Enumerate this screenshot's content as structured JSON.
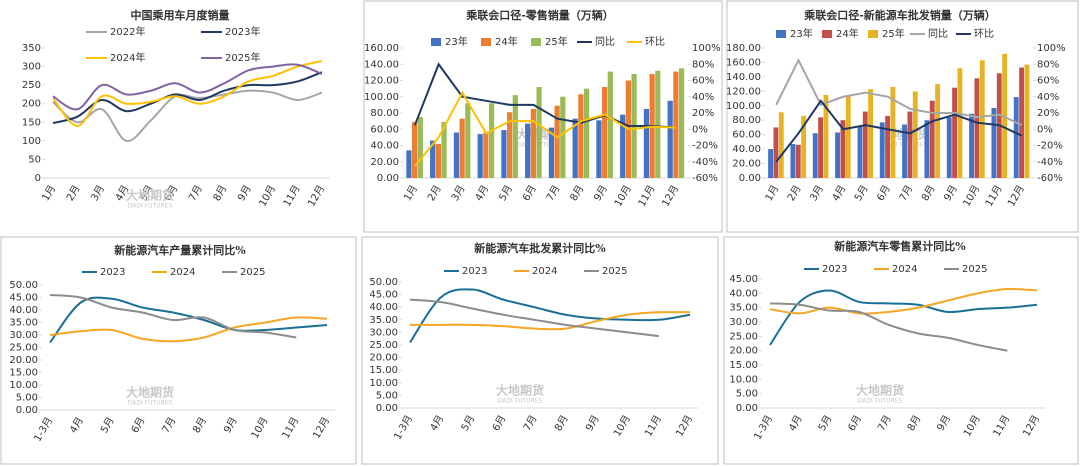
{
  "chart_data": [
    {
      "type": "line",
      "title": "中国乘用车月度销量",
      "categories": [
        "1月",
        "2月",
        "3月",
        "4月",
        "5月",
        "6月",
        "7月",
        "8月",
        "9月",
        "10月",
        "11月",
        "12月"
      ],
      "series": [
        {
          "name": "2022年",
          "color": "#a6a6a6",
          "values": [
            205,
            150,
            185,
            100,
            155,
            220,
            215,
            225,
            235,
            230,
            210,
            230
          ]
        },
        {
          "name": "2023年",
          "color": "#1f3864",
          "values": [
            148,
            165,
            210,
            180,
            200,
            225,
            210,
            235,
            250,
            250,
            260,
            285
          ]
        },
        {
          "name": "2024年",
          "color": "#ffc000",
          "values": [
            215,
            140,
            220,
            200,
            205,
            220,
            200,
            220,
            260,
            275,
            300,
            315
          ]
        },
        {
          "name": "2025年",
          "color": "#8064a2",
          "values": [
            220,
            185,
            250,
            225,
            235,
            255,
            230,
            255,
            290,
            300,
            305,
            280
          ]
        }
      ],
      "ylim": [
        0,
        350
      ],
      "yticks": [
        0,
        50,
        100,
        150,
        200,
        250,
        300,
        350
      ],
      "watermark": "大地期货",
      "watermark_sub": "DADI FUTURES"
    },
    {
      "type": "bar",
      "title": "乘联会口径-零售销量（万辆）",
      "categories": [
        "1月",
        "2月",
        "3月",
        "4月",
        "5月",
        "6月",
        "7月",
        "8月",
        "9月",
        "10月",
        "11月",
        "12月"
      ],
      "series": [
        {
          "name": "23年",
          "color": "#4472c4",
          "values": [
            34,
            46,
            56,
            54,
            59,
            67,
            62,
            73,
            71,
            78,
            85,
            95
          ]
        },
        {
          "name": "24年",
          "color": "#ed7d31",
          "values": [
            69,
            42,
            73,
            56,
            81,
            85,
            89,
            103,
            112,
            120,
            128,
            131
          ]
        },
        {
          "name": "25年",
          "color": "#9bbb59",
          "values": [
            75,
            69,
            92,
            92,
            102,
            112,
            100,
            110,
            131,
            128,
            132,
            135
          ]
        },
        {
          "name": "同比",
          "color": "#1f3864",
          "axis": "y2",
          "values": [
            5,
            80,
            40,
            35,
            30,
            30,
            13,
            8,
            17,
            4,
            4,
            2
          ]
        },
        {
          "name": "环比",
          "color": "#ffc000",
          "axis": "y2",
          "values": [
            -45,
            -10,
            45,
            -5,
            10,
            10,
            -10,
            10,
            18,
            0,
            3,
            2
          ]
        }
      ],
      "ylim": [
        0,
        160
      ],
      "yticks": [
        {
          "value": 0,
          "label": "0.00"
        },
        {
          "value": 20,
          "label": "20.00"
        },
        {
          "value": 40,
          "label": "40.00"
        },
        {
          "value": 60,
          "label": "60.00"
        },
        {
          "value": 80,
          "label": "80.00"
        },
        {
          "value": 100,
          "label": "100.00"
        },
        {
          "value": 120,
          "label": "120.00"
        },
        {
          "value": 140,
          "label": "140.00"
        },
        {
          "value": 160,
          "label": "160.00"
        }
      ],
      "y2lim": [
        -60,
        100
      ],
      "y2ticks": [
        {
          "value": -60,
          "label": "-60%"
        },
        {
          "value": -40,
          "label": "-40%"
        },
        {
          "value": -20,
          "label": "-20%"
        },
        {
          "value": 0,
          "label": "0%"
        },
        {
          "value": 20,
          "label": "20%"
        },
        {
          "value": 40,
          "label": "40%"
        },
        {
          "value": 60,
          "label": "60%"
        },
        {
          "value": 80,
          "label": "80%"
        },
        {
          "value": 100,
          "label": "100%"
        }
      ],
      "watermark": "大地期货",
      "watermark_sub": "DADI FUTURES"
    },
    {
      "type": "bar",
      "title": "乘联会口径-新能源车批发销量（万辆）",
      "categories": [
        "1月",
        "2月",
        "3月",
        "4月",
        "5月",
        "6月",
        "7月",
        "8月",
        "9月",
        "10月",
        "11月",
        "12月"
      ],
      "series": [
        {
          "name": "23年",
          "color": "#4472c4",
          "values": [
            40,
            47,
            62,
            63,
            72,
            77,
            74,
            80,
            84,
            89,
            97,
            112
          ]
        },
        {
          "name": "24年",
          "color": "#c0504d",
          "values": [
            70,
            46,
            84,
            80,
            92,
            86,
            92,
            107,
            125,
            138,
            145,
            153
          ]
        },
        {
          "name": "25年",
          "color": "#e6b422",
          "values": [
            91,
            86,
            115,
            114,
            123,
            126,
            120,
            130,
            152,
            163,
            172,
            157
          ]
        },
        {
          "name": "同比",
          "color": "#a6a6a6",
          "axis": "y2",
          "values": [
            30,
            85,
            30,
            40,
            45,
            40,
            25,
            20,
            20,
            15,
            18,
            5
          ]
        },
        {
          "name": "环比",
          "color": "#1f3864",
          "axis": "y2",
          "values": [
            -40,
            -5,
            35,
            0,
            5,
            0,
            -5,
            10,
            18,
            8,
            5,
            -8
          ]
        }
      ],
      "ylim": [
        0,
        180
      ],
      "yticks": [
        {
          "value": 0,
          "label": "0.00"
        },
        {
          "value": 20,
          "label": "20.00"
        },
        {
          "value": 40,
          "label": "40.00"
        },
        {
          "value": 60,
          "label": "60.00"
        },
        {
          "value": 80,
          "label": "80.00"
        },
        {
          "value": 100,
          "label": "100.00"
        },
        {
          "value": 120,
          "label": "120.00"
        },
        {
          "value": 140,
          "label": "140.00"
        },
        {
          "value": 160,
          "label": "160.00"
        },
        {
          "value": 180,
          "label": "180.00"
        }
      ],
      "y2lim": [
        -60,
        100
      ],
      "y2ticks": [
        {
          "value": -60,
          "label": "-60%"
        },
        {
          "value": -40,
          "label": "-40%"
        },
        {
          "value": -20,
          "label": "-20%"
        },
        {
          "value": 0,
          "label": "0%"
        },
        {
          "value": 20,
          "label": "20%"
        },
        {
          "value": 40,
          "label": "40%"
        },
        {
          "value": 60,
          "label": "60%"
        },
        {
          "value": 80,
          "label": "80%"
        },
        {
          "value": 100,
          "label": "100%"
        }
      ],
      "watermark": "大地期货",
      "watermark_sub": "DADI FUTURES"
    },
    {
      "type": "line",
      "title": "新能源汽车产量累计同比%",
      "categories": [
        "1-3月",
        "4月",
        "5月",
        "6月",
        "7月",
        "8月",
        "9月",
        "10月",
        "11月",
        "12月"
      ],
      "series": [
        {
          "name": "2023",
          "color": "#1a6f96",
          "values": [
            27,
            43,
            44.5,
            41,
            39,
            36,
            32,
            32,
            33,
            34
          ]
        },
        {
          "name": "2024",
          "color": "#f5a623",
          "values": [
            30,
            31.5,
            32,
            28.5,
            27.5,
            29,
            33,
            35,
            37,
            36.5
          ]
        },
        {
          "name": "2025",
          "color": "#8c8c8c",
          "values": [
            46,
            45,
            41,
            39,
            36,
            37,
            32,
            31,
            29,
            null
          ]
        }
      ],
      "ylim": [
        0,
        50
      ],
      "yticks": [
        {
          "value": 0,
          "label": "0.00"
        },
        {
          "value": 5,
          "label": "5.00"
        },
        {
          "value": 10,
          "label": "10.00"
        },
        {
          "value": 15,
          "label": "15.00"
        },
        {
          "value": 20,
          "label": "20.00"
        },
        {
          "value": 25,
          "label": "25.00"
        },
        {
          "value": 30,
          "label": "30.00"
        },
        {
          "value": 35,
          "label": "35.00"
        },
        {
          "value": 40,
          "label": "40.00"
        },
        {
          "value": 45,
          "label": "45.00"
        },
        {
          "value": 50,
          "label": "50.00"
        }
      ],
      "watermark": "大地期货",
      "watermark_sub": "DADI FUTURES"
    },
    {
      "type": "line",
      "title": "新能源汽车批发累计同比%",
      "categories": [
        "1-3月",
        "4月",
        "5月",
        "6月",
        "7月",
        "8月",
        "9月",
        "10月",
        "11月",
        "12月"
      ],
      "series": [
        {
          "name": "2023",
          "color": "#1a6f96",
          "values": [
            26,
            44,
            47,
            43,
            40,
            37,
            35.5,
            35,
            35,
            37
          ]
        },
        {
          "name": "2024",
          "color": "#f5a623",
          "values": [
            33,
            33,
            33,
            32.5,
            31.5,
            31.5,
            34.5,
            37,
            38,
            38
          ]
        },
        {
          "name": "2025",
          "color": "#8c8c8c",
          "values": [
            43,
            42,
            39.5,
            37,
            35,
            33,
            31.5,
            30,
            28.5,
            null
          ]
        }
      ],
      "ylim": [
        0,
        50
      ],
      "yticks": [
        {
          "value": 0,
          "label": "0.00"
        },
        {
          "value": 5,
          "label": "5.00"
        },
        {
          "value": 10,
          "label": "10.00"
        },
        {
          "value": 15,
          "label": "15.00"
        },
        {
          "value": 20,
          "label": "20.00"
        },
        {
          "value": 25,
          "label": "25.00"
        },
        {
          "value": 30,
          "label": "30.00"
        },
        {
          "value": 35,
          "label": "35.00"
        },
        {
          "value": 40,
          "label": "40.00"
        },
        {
          "value": 45,
          "label": "45.00"
        },
        {
          "value": 50,
          "label": "50.00"
        }
      ],
      "watermark": "大地期货",
      "watermark_sub": "DADI FUTURES"
    },
    {
      "type": "line",
      "title": "新能源汽车零售累计同比%",
      "categories": [
        "1-3月",
        "4月",
        "5月",
        "6月",
        "7月",
        "8月",
        "9月",
        "10月",
        "11月",
        "12月"
      ],
      "series": [
        {
          "name": "2023",
          "color": "#1a6f96",
          "values": [
            22,
            37,
            41,
            37,
            36.5,
            36,
            33.5,
            34.5,
            35,
            36
          ]
        },
        {
          "name": "2024",
          "color": "#f5a623",
          "values": [
            34.5,
            33,
            35,
            33,
            33.5,
            35,
            37.5,
            40,
            41.5,
            41
          ]
        },
        {
          "name": "2025",
          "color": "#8c8c8c",
          "values": [
            36.5,
            36,
            34,
            33.5,
            29,
            26,
            24.5,
            22,
            20,
            null
          ]
        }
      ],
      "ylim": [
        0,
        45
      ],
      "yticks": [
        {
          "value": 0,
          "label": "0.00"
        },
        {
          "value": 5,
          "label": "5.00"
        },
        {
          "value": 10,
          "label": "10.00"
        },
        {
          "value": 15,
          "label": "15.00"
        },
        {
          "value": 20,
          "label": "20.00"
        },
        {
          "value": 25,
          "label": "25.00"
        },
        {
          "value": 30,
          "label": "30.00"
        },
        {
          "value": 35,
          "label": "35.00"
        },
        {
          "value": 40,
          "label": "40.00"
        },
        {
          "value": 45,
          "label": "45.00"
        }
      ],
      "watermark": "大地期货",
      "watermark_sub": "DADI FUTURES"
    }
  ]
}
